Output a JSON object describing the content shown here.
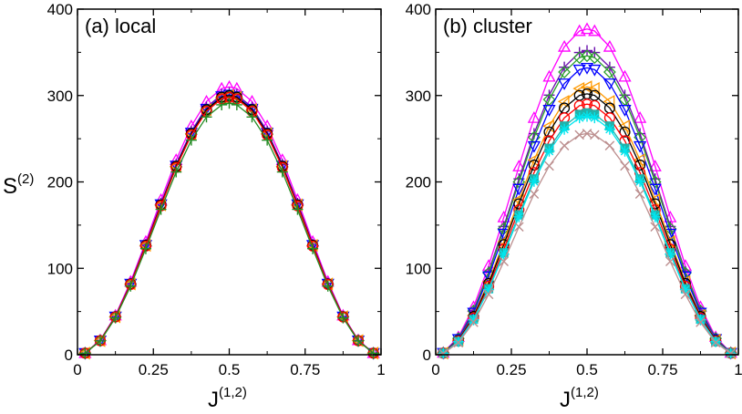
{
  "chart_data": [
    {
      "type": "line",
      "title": "(a) local",
      "ylabel": "S",
      "ylabel_sup": "(2)",
      "xlabel": "J",
      "xlabel_sup": "(1,2)",
      "xlim": [
        0,
        1
      ],
      "ylim": [
        0,
        400
      ],
      "xticks": [
        0,
        0.25,
        0.5,
        0.75,
        1
      ],
      "xtick_labels": [
        "0",
        "0.25",
        "0.5",
        "0.75",
        "1"
      ],
      "yticks": [
        0,
        100,
        200,
        300,
        400
      ],
      "ytick_labels": [
        "0",
        "100",
        "200",
        "300",
        "400"
      ],
      "x": [
        0.025,
        0.075,
        0.125,
        0.175,
        0.225,
        0.275,
        0.325,
        0.375,
        0.425,
        0.475,
        0.5,
        0.525,
        0.575,
        0.625,
        0.675,
        0.725,
        0.775,
        0.825,
        0.875,
        0.925,
        0.975
      ],
      "series": [
        {
          "name": "pink triangles",
          "color": "#ff00ff",
          "marker": "triangle",
          "peak": 310
        },
        {
          "name": "purple plus",
          "color": "#6a0dad",
          "marker": "plus",
          "peak": 303
        },
        {
          "name": "blue down triangles",
          "color": "#0000ff",
          "marker": "triangle-down",
          "peak": 301
        },
        {
          "name": "green diamonds",
          "color": "#2ca02c",
          "marker": "diamond",
          "peak": 299
        },
        {
          "name": "orange left triangles",
          "color": "#ff9900",
          "marker": "triangle-left",
          "peak": 300
        },
        {
          "name": "black circles",
          "color": "#000000",
          "marker": "circle",
          "peak": 300
        },
        {
          "name": "red circles",
          "color": "#ff0000",
          "marker": "circle",
          "peak": 298
        },
        {
          "name": "dark green plus",
          "color": "#228b22",
          "marker": "plus",
          "peak": 291
        }
      ]
    },
    {
      "type": "line",
      "title": "(b) cluster",
      "ylabel": "",
      "xlabel": "J",
      "xlabel_sup": "(1,2)",
      "xlim": [
        0,
        1
      ],
      "ylim": [
        0,
        400
      ],
      "xticks": [
        0,
        0.25,
        0.5,
        0.75,
        1
      ],
      "xtick_labels": [
        "0",
        "0.25",
        "0.5",
        "0.75",
        "1"
      ],
      "yticks": [
        0,
        100,
        200,
        300,
        400
      ],
      "ytick_labels": [
        "0",
        "100",
        "200",
        "300",
        "400"
      ],
      "x": [
        0.025,
        0.075,
        0.125,
        0.175,
        0.225,
        0.275,
        0.325,
        0.375,
        0.425,
        0.475,
        0.5,
        0.525,
        0.575,
        0.625,
        0.675,
        0.725,
        0.775,
        0.825,
        0.875,
        0.925,
        0.975
      ],
      "series": [
        {
          "name": "pink triangles",
          "color": "#ff00ff",
          "marker": "triangle",
          "peak": 377
        },
        {
          "name": "purple plus",
          "color": "#6a0dad",
          "marker": "plus",
          "peak": 352
        },
        {
          "name": "green diamonds",
          "color": "#2ca02c",
          "marker": "diamond",
          "peak": 346
        },
        {
          "name": "blue down triangles",
          "color": "#0000ff",
          "marker": "triangle-down",
          "peak": 332
        },
        {
          "name": "orange left triangles",
          "color": "#ff9900",
          "marker": "triangle-left",
          "peak": 310
        },
        {
          "name": "black circles",
          "color": "#000000",
          "marker": "circle",
          "peak": 302
        },
        {
          "name": "red circles",
          "color": "#ff0000",
          "marker": "circle",
          "peak": 290
        },
        {
          "name": "teal squares",
          "color": "#20b2aa",
          "marker": "square",
          "peak": 280
        },
        {
          "name": "cyan stars",
          "color": "#00e5ee",
          "marker": "star",
          "peak": 276
        },
        {
          "name": "rosy x",
          "color": "#bc8f8f",
          "marker": "x",
          "peak": 256
        }
      ]
    }
  ]
}
